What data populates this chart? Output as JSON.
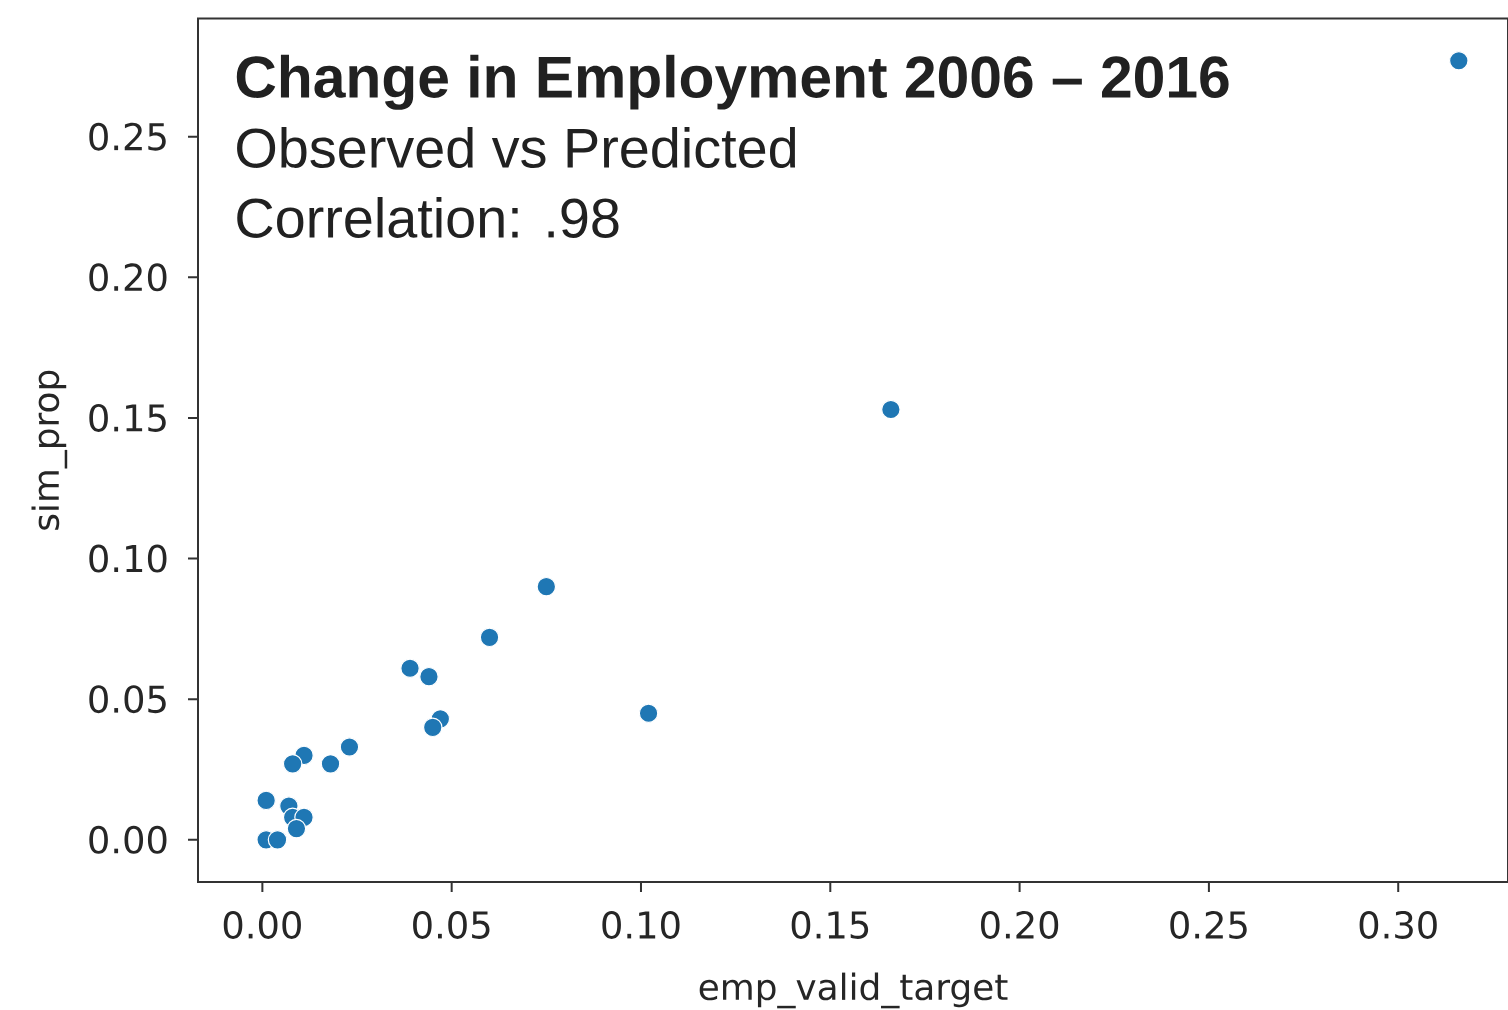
{
  "chart_data": {
    "type": "scatter",
    "title": "Change in Employment 2006 – 2016",
    "subtitle": "Observed vs Predicted",
    "annotations": [
      "Correlation: .98"
    ],
    "xlabel": "emp_valid_target",
    "ylabel": "sim_prop",
    "color": "#1f77b4",
    "marker": "circle",
    "x": [
      0.316,
      0.166,
      0.075,
      0.06,
      0.039,
      0.044,
      0.102,
      0.047,
      0.045,
      0.023,
      0.011,
      0.018,
      0.008,
      0.001,
      0.007,
      0.008,
      0.011,
      0.009,
      0.001,
      0.004
    ],
    "values": [
      0.277,
      0.153,
      0.09,
      0.072,
      0.061,
      0.058,
      0.045,
      0.043,
      0.04,
      0.033,
      0.03,
      0.027,
      0.027,
      0.014,
      0.012,
      0.008,
      0.008,
      0.004,
      0.0,
      0.0
    ],
    "xlim": [
      -0.017,
      0.329
    ],
    "ylim": [
      -0.015,
      0.292
    ],
    "xticks": [
      {
        "value": 0,
        "label": "0.00"
      },
      {
        "value": 0.05,
        "label": "0.05"
      },
      {
        "value": 0.1,
        "label": "0.10"
      },
      {
        "value": 0.15,
        "label": "0.15"
      },
      {
        "value": 0.2,
        "label": "0.20"
      },
      {
        "value": 0.25,
        "label": "0.25"
      },
      {
        "value": 0.3,
        "label": "0.30"
      }
    ],
    "yticks": [
      {
        "value": 0,
        "label": "0.00"
      },
      {
        "value": 0.05,
        "label": "0.05"
      },
      {
        "value": 0.1,
        "label": "0.10"
      },
      {
        "value": 0.15,
        "label": "0.15"
      },
      {
        "value": 0.2,
        "label": "0.20"
      },
      {
        "value": 0.25,
        "label": "0.25"
      }
    ]
  }
}
